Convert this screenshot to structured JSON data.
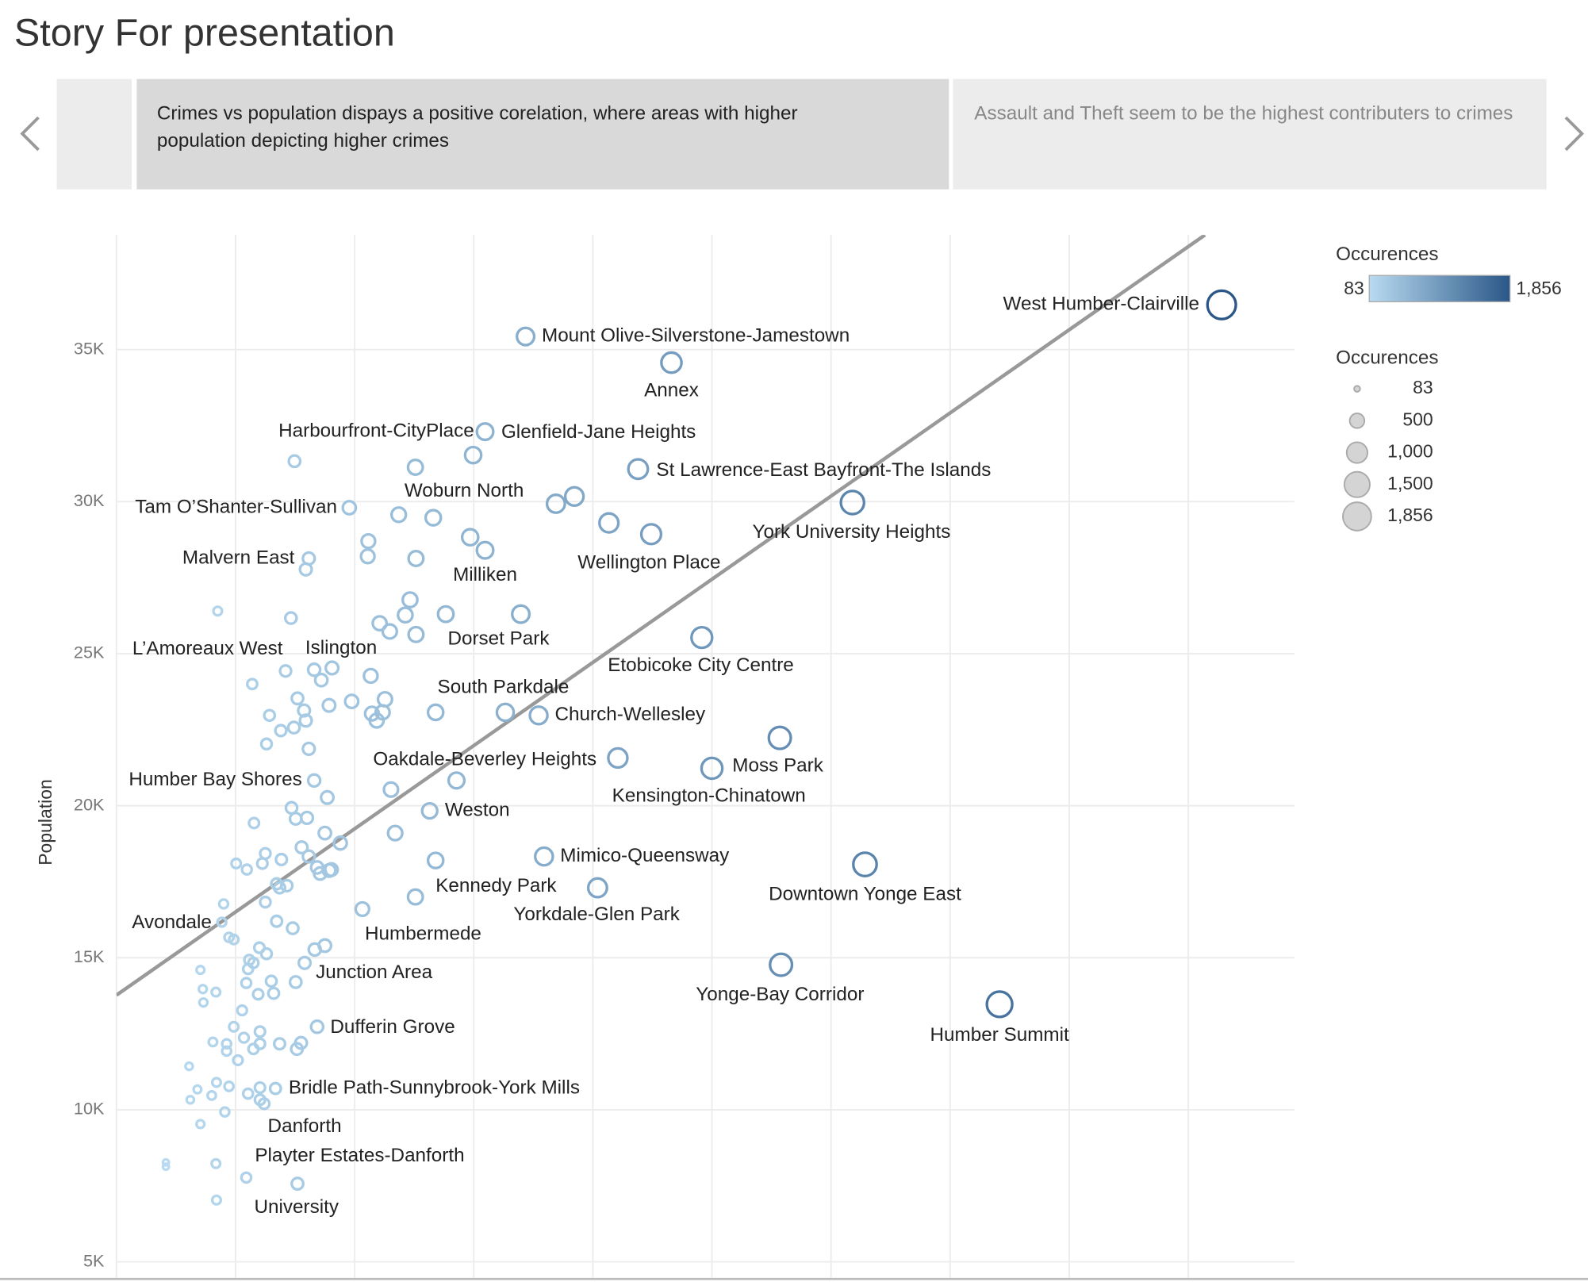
{
  "story": {
    "title": "Story For presentation",
    "story_points": [
      {
        "caption": "Crimes vs population dispays a positive corelation, where areas with higher population depicting higher crimes"
      },
      {
        "caption": "Assault and Theft seem to be the highest contributers to crimes"
      }
    ]
  },
  "chart_data": {
    "type": "scatter",
    "y_label": "Population",
    "xlim": [
      0,
      1978
    ],
    "xticks": [
      0,
      200,
      400,
      600,
      800,
      1000,
      1200,
      1400,
      1600,
      1800
    ],
    "ylim": [
      4470,
      38770
    ],
    "yticks": [
      {
        "value": 5000,
        "label": "5K"
      },
      {
        "value": 10000,
        "label": "10K"
      },
      {
        "value": 15000,
        "label": "15K"
      },
      {
        "value": 20000,
        "label": "20K"
      },
      {
        "value": 25000,
        "label": "25K"
      },
      {
        "value": 30000,
        "label": "30K"
      },
      {
        "value": 35000,
        "label": "35K"
      }
    ],
    "grid": true,
    "color_range": [
      "#b9dbf1",
      "#2a5788"
    ],
    "trend_line": {
      "color": "#999999",
      "x": [
        0,
        1828
      ],
      "y": [
        13770,
        38770
      ]
    },
    "color_legend": {
      "title": "Occurences",
      "min": 83,
      "max": {
        "value": 1856,
        "label": "1,856"
      }
    },
    "size_legend": {
      "title": "Occurences",
      "color": "#d4d4d4",
      "values": [
        83,
        500,
        {
          "value": 1000,
          "label": "1,000"
        },
        {
          "value": 1500,
          "label": "1,500"
        },
        {
          "value": 1856,
          "label": "1,856"
        }
      ]
    },
    "points": [
      {
        "label": "West Humber-Clairville",
        "x": 1856,
        "y": 36470
      },
      {
        "label": "Mount Olive-Silverstone-Jamestown",
        "x": 687,
        "y": 35430
      },
      {
        "label": "Annex",
        "x": 932,
        "y": 34570
      },
      {
        "label": "Harbourfront-CityPlace",
        "x": 599,
        "y": 31530
      },
      {
        "label": "Glenfield-Jane Heights",
        "x": 619,
        "y": 32300
      },
      {
        "label": "St Lawrence-East Bayfront-The Islands",
        "x": 876,
        "y": 31070
      },
      {
        "label": "York University Heights",
        "x": 1236,
        "y": 29970
      },
      {
        "label": "Woburn North",
        "x": 594,
        "y": 28830
      },
      {
        "label": "Milliken",
        "x": 619,
        "y": 28400
      },
      {
        "label": "Tam O’Shanter-Sullivan",
        "x": 391,
        "y": 29800
      },
      {
        "label": "Malvern East",
        "x": 323,
        "y": 28130
      },
      {
        "label": "Wellington Place",
        "x": 898,
        "y": 28930
      },
      {
        "label": "Dorset Park",
        "x": 679,
        "y": 26300
      },
      {
        "label": "L’Amoreaux West",
        "x": 170,
        "y": 26400
      },
      {
        "label": "Islington",
        "x": 362,
        "y": 24530
      },
      {
        "label": "Etobicoke City Centre",
        "x": 983,
        "y": 25530
      },
      {
        "label": "South Parkdale",
        "x": 653,
        "y": 23070
      },
      {
        "label": "Church-Wellesley",
        "x": 709,
        "y": 22970
      },
      {
        "label": "Oakdale-Beverley Heights",
        "x": 571,
        "y": 20830
      },
      {
        "label": "Kensington-Chinatown",
        "x": 1000,
        "y": 21230
      },
      {
        "label": "Moss Park",
        "x": 1114,
        "y": 22230
      },
      {
        "label": "Humber Bay Shores",
        "x": 332,
        "y": 20830
      },
      {
        "label": "Weston",
        "x": 526,
        "y": 19830
      },
      {
        "label": "Mimico-Queensway",
        "x": 718,
        "y": 18330
      },
      {
        "label": "Kennedy Park",
        "x": 502,
        "y": 17000
      },
      {
        "label": "Downtown Yonge East",
        "x": 1257,
        "y": 18070
      },
      {
        "label": "Yorkdale-Glen Park",
        "x": 808,
        "y": 17300
      },
      {
        "label": "Humbermede",
        "x": 413,
        "y": 16600
      },
      {
        "label": "Avondale",
        "x": 177,
        "y": 16170
      },
      {
        "label": "Junction Area",
        "x": 316,
        "y": 14830
      },
      {
        "label": "Yonge-Bay Corridor",
        "x": 1116,
        "y": 14770
      },
      {
        "label": "Humber Summit",
        "x": 1483,
        "y": 13470
      },
      {
        "label": "Dufferin Grove",
        "x": 337,
        "y": 12730
      },
      {
        "label": "Bridle Path-Sunnybrook-York Mills",
        "x": 267,
        "y": 10700
      },
      {
        "label": "Danforth",
        "x": 248,
        "y": 10200
      },
      {
        "label": "Playter Estates-Danforth",
        "x": 218,
        "y": 7770
      },
      {
        "label": "University",
        "x": 304,
        "y": 7570
      },
      {
        "x": 299,
        "y": 31330
      },
      {
        "x": 502,
        "y": 31130
      },
      {
        "x": 738,
        "y": 29930
      },
      {
        "x": 769,
        "y": 30170
      },
      {
        "x": 827,
        "y": 29300
      },
      {
        "x": 474,
        "y": 29570
      },
      {
        "x": 532,
        "y": 29470
      },
      {
        "x": 423,
        "y": 28700
      },
      {
        "x": 422,
        "y": 28200
      },
      {
        "x": 503,
        "y": 28130
      },
      {
        "x": 318,
        "y": 27770
      },
      {
        "x": 493,
        "y": 26770
      },
      {
        "x": 485,
        "y": 26270
      },
      {
        "x": 442,
        "y": 26000
      },
      {
        "x": 459,
        "y": 25730
      },
      {
        "x": 503,
        "y": 25630
      },
      {
        "x": 553,
        "y": 26300
      },
      {
        "x": 293,
        "y": 26170
      },
      {
        "x": 332,
        "y": 24470
      },
      {
        "x": 284,
        "y": 24430
      },
      {
        "x": 228,
        "y": 24000
      },
      {
        "x": 344,
        "y": 24130
      },
      {
        "x": 427,
        "y": 24270
      },
      {
        "x": 395,
        "y": 23430
      },
      {
        "x": 451,
        "y": 23500
      },
      {
        "x": 304,
        "y": 23530
      },
      {
        "x": 315,
        "y": 23130
      },
      {
        "x": 357,
        "y": 23300
      },
      {
        "x": 257,
        "y": 22970
      },
      {
        "x": 318,
        "y": 22800
      },
      {
        "x": 429,
        "y": 23030
      },
      {
        "x": 447,
        "y": 23070
      },
      {
        "x": 437,
        "y": 22800
      },
      {
        "x": 298,
        "y": 22570
      },
      {
        "x": 276,
        "y": 22470
      },
      {
        "x": 536,
        "y": 23070
      },
      {
        "x": 252,
        "y": 22030
      },
      {
        "x": 323,
        "y": 21870
      },
      {
        "x": 842,
        "y": 21570
      },
      {
        "x": 461,
        "y": 20530
      },
      {
        "x": 354,
        "y": 20270
      },
      {
        "x": 231,
        "y": 19430
      },
      {
        "x": 294,
        "y": 19930
      },
      {
        "x": 301,
        "y": 19570
      },
      {
        "x": 320,
        "y": 19600
      },
      {
        "x": 350,
        "y": 19100
      },
      {
        "x": 376,
        "y": 18770
      },
      {
        "x": 468,
        "y": 19100
      },
      {
        "x": 536,
        "y": 18200
      },
      {
        "x": 311,
        "y": 18630
      },
      {
        "x": 323,
        "y": 18330
      },
      {
        "x": 277,
        "y": 18230
      },
      {
        "x": 250,
        "y": 18430
      },
      {
        "x": 245,
        "y": 18100
      },
      {
        "x": 201,
        "y": 18100
      },
      {
        "x": 219,
        "y": 17900
      },
      {
        "x": 337,
        "y": 17970
      },
      {
        "x": 357,
        "y": 17870
      },
      {
        "x": 342,
        "y": 17770
      },
      {
        "x": 361,
        "y": 17900
      },
      {
        "x": 269,
        "y": 17430
      },
      {
        "x": 286,
        "y": 17370
      },
      {
        "x": 274,
        "y": 17300
      },
      {
        "x": 250,
        "y": 16830
      },
      {
        "x": 180,
        "y": 16770
      },
      {
        "x": 197,
        "y": 15600
      },
      {
        "x": 189,
        "y": 15670
      },
      {
        "x": 269,
        "y": 16200
      },
      {
        "x": 296,
        "y": 15970
      },
      {
        "x": 240,
        "y": 15330
      },
      {
        "x": 252,
        "y": 15130
      },
      {
        "x": 223,
        "y": 14930
      },
      {
        "x": 230,
        "y": 14830
      },
      {
        "x": 221,
        "y": 14630
      },
      {
        "x": 333,
        "y": 15270
      },
      {
        "x": 350,
        "y": 15400
      },
      {
        "x": 141,
        "y": 14600
      },
      {
        "x": 145,
        "y": 13970
      },
      {
        "x": 167,
        "y": 13870
      },
      {
        "x": 146,
        "y": 13530
      },
      {
        "x": 218,
        "y": 14170
      },
      {
        "x": 260,
        "y": 14230
      },
      {
        "x": 238,
        "y": 13800
      },
      {
        "x": 264,
        "y": 13830
      },
      {
        "x": 301,
        "y": 14200
      },
      {
        "x": 211,
        "y": 13270
      },
      {
        "x": 197,
        "y": 12730
      },
      {
        "x": 241,
        "y": 12570
      },
      {
        "x": 214,
        "y": 12370
      },
      {
        "x": 310,
        "y": 12200
      },
      {
        "x": 303,
        "y": 12000
      },
      {
        "x": 162,
        "y": 12230
      },
      {
        "x": 185,
        "y": 12170
      },
      {
        "x": 185,
        "y": 11930
      },
      {
        "x": 241,
        "y": 12170
      },
      {
        "x": 204,
        "y": 11630
      },
      {
        "x": 230,
        "y": 12000
      },
      {
        "x": 274,
        "y": 12170
      },
      {
        "x": 122,
        "y": 11430
      },
      {
        "x": 168,
        "y": 10900
      },
      {
        "x": 189,
        "y": 10770
      },
      {
        "x": 136,
        "y": 10670
      },
      {
        "x": 124,
        "y": 10330
      },
      {
        "x": 160,
        "y": 10470
      },
      {
        "x": 221,
        "y": 10530
      },
      {
        "x": 241,
        "y": 10730
      },
      {
        "x": 241,
        "y": 10330
      },
      {
        "x": 141,
        "y": 9530
      },
      {
        "x": 182,
        "y": 9930
      },
      {
        "x": 83,
        "y": 8270
      },
      {
        "x": 83,
        "y": 8130
      },
      {
        "x": 167,
        "y": 8230
      },
      {
        "x": 168,
        "y": 7030
      }
    ]
  }
}
